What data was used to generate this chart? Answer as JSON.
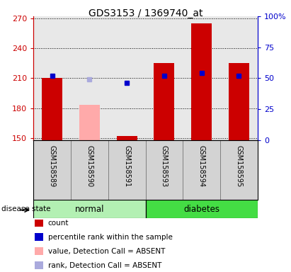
{
  "title": "GDS3153 / 1369740_at",
  "samples": [
    "GSM158589",
    "GSM158590",
    "GSM158591",
    "GSM158593",
    "GSM158594",
    "GSM158595"
  ],
  "groups": [
    "normal",
    "normal",
    "normal",
    "diabetes",
    "diabetes",
    "diabetes"
  ],
  "group_labels": [
    "normal",
    "diabetes"
  ],
  "normal_color": "#b3f0b3",
  "diabetes_color": "#44dd44",
  "ylim_left": [
    148,
    272
  ],
  "ylim_right": [
    0,
    100
  ],
  "yticks_left": [
    150,
    180,
    210,
    240,
    270
  ],
  "yticks_right": [
    0,
    25,
    50,
    75,
    100
  ],
  "red_bars": {
    "GSM158589": 210,
    "GSM158590": null,
    "GSM158591": 152,
    "GSM158593": 225,
    "GSM158594": 265,
    "GSM158595": 225
  },
  "pink_bars": {
    "GSM158589": null,
    "GSM158590": 183,
    "GSM158591": null,
    "GSM158593": null,
    "GSM158594": null,
    "GSM158595": null
  },
  "blue_dots_pct": {
    "GSM158589": 52,
    "GSM158590": null,
    "GSM158591": 46,
    "GSM158593": 52,
    "GSM158594": 54,
    "GSM158595": 52
  },
  "light_blue_dots_pct": {
    "GSM158589": null,
    "GSM158590": 49,
    "GSM158591": null,
    "GSM158593": null,
    "GSM158594": null,
    "GSM158595": null
  },
  "red_bar_color": "#cc0000",
  "pink_bar_color": "#ffaaaa",
  "blue_dot_color": "#0000cc",
  "light_blue_dot_color": "#aaaadd",
  "axis_left_color": "#cc0000",
  "axis_right_color": "#0000cc",
  "plot_bg_color": "#e8e8e8",
  "label_bg_color": "#d3d3d3",
  "legend_items": [
    {
      "label": "count",
      "color": "#cc0000"
    },
    {
      "label": "percentile rank within the sample",
      "color": "#0000cc"
    },
    {
      "label": "value, Detection Call = ABSENT",
      "color": "#ffaaaa"
    },
    {
      "label": "rank, Detection Call = ABSENT",
      "color": "#aaaadd"
    }
  ],
  "disease_state_label": "disease state"
}
